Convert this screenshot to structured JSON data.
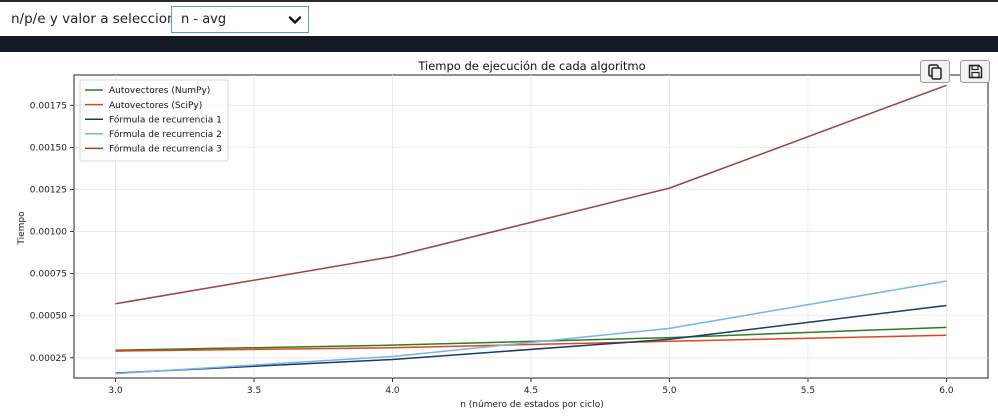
{
  "selector": {
    "label": "n/p/e y valor a seleccionar:",
    "value": "n - avg"
  },
  "toolbar": {
    "copy_icon": "copy-icon",
    "save_icon": "floppy-disk-icon"
  },
  "chart_data": {
    "type": "line",
    "title": "Tiempo de ejecución de cada algoritmo",
    "xlabel": "n (número de estados por ciclo)",
    "ylabel": "Tiempo",
    "x": [
      3,
      4,
      5,
      6
    ],
    "xlim": [
      2.85,
      6.15
    ],
    "ylim": [
      0.00013,
      0.00193
    ],
    "xticks": [
      "3.0",
      "3.5",
      "4.0",
      "4.5",
      "5.0",
      "5.5",
      "6.0"
    ],
    "yticks": [
      "0.00025",
      "0.00050",
      "0.00075",
      "0.00100",
      "0.00125",
      "0.00150",
      "0.00175"
    ],
    "grid": true,
    "legend_position": "top-left",
    "series": [
      {
        "name": "Autovectores (NumPy)",
        "color": "#2e7d1f",
        "values": [
          0.000295,
          0.000325,
          0.00037,
          0.000431
        ]
      },
      {
        "name": "Autovectores (SciPy)",
        "color": "#e0451f",
        "values": [
          0.00029,
          0.00031,
          0.000348,
          0.000384
        ]
      },
      {
        "name": "Fórmula de recurrencia 1",
        "color": "#1d3a6b",
        "values": [
          0.000159,
          0.00024,
          0.00036,
          0.000561
        ]
      },
      {
        "name": "Fórmula de recurrencia 2",
        "color": "#74b5ec",
        "values": [
          0.000156,
          0.000258,
          0.000425,
          0.000706
        ]
      },
      {
        "name": "Fórmula de recurrencia 3",
        "color": "#a3413a",
        "values": [
          0.000571,
          0.000851,
          0.001258,
          0.001869
        ]
      }
    ]
  }
}
